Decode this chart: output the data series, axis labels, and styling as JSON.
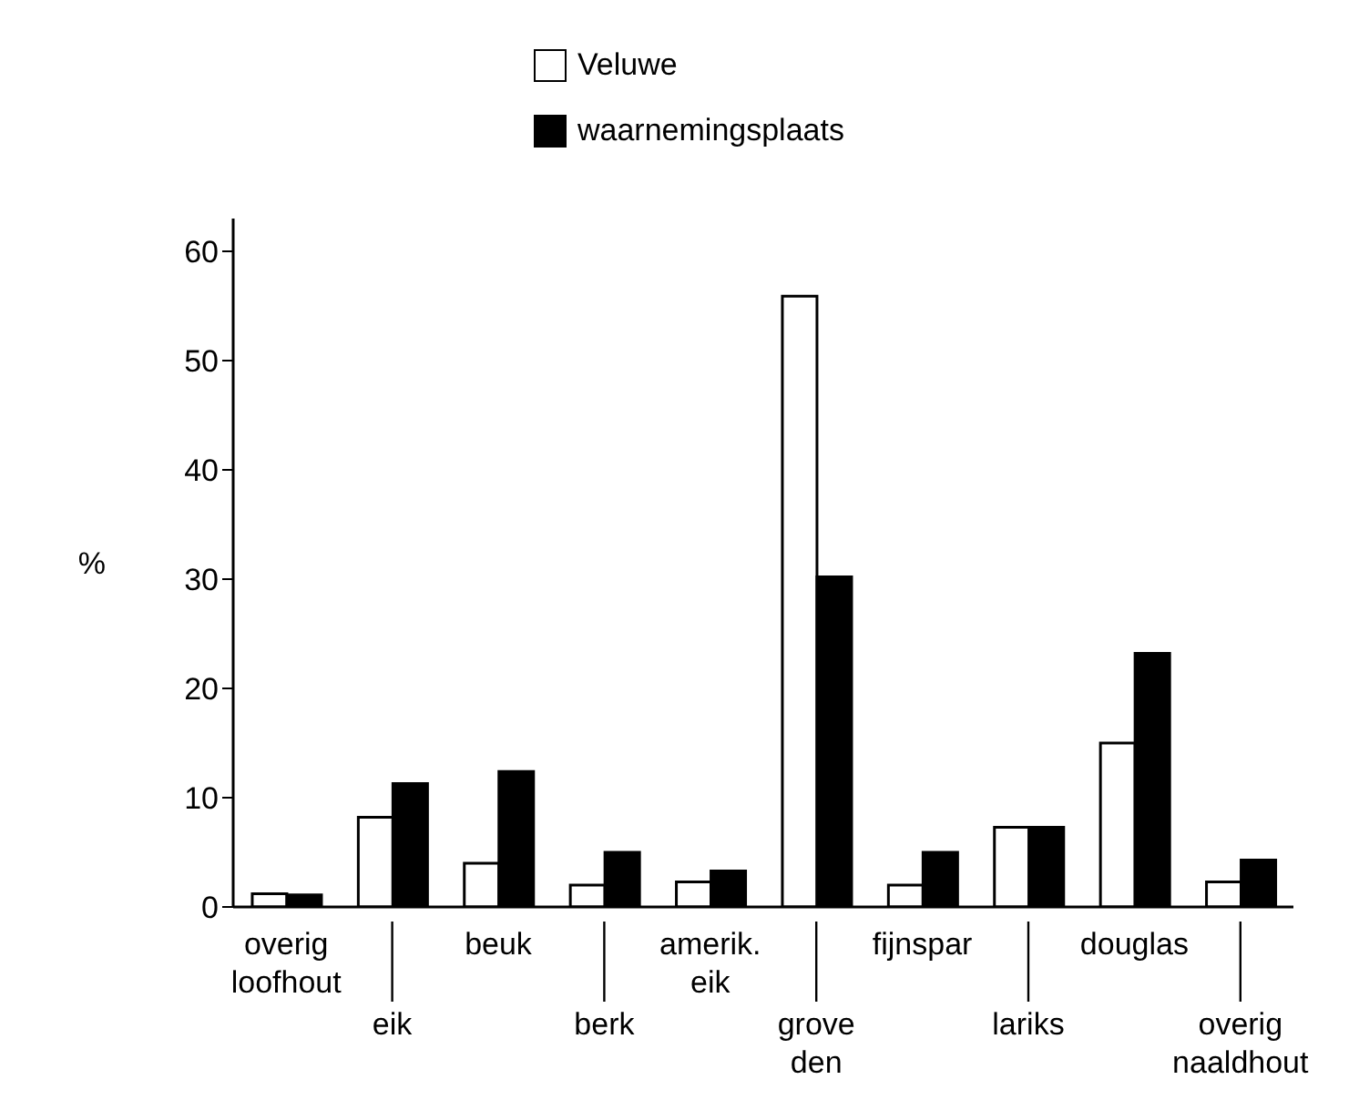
{
  "chart_data": {
    "type": "bar",
    "ylabel": "%",
    "categories": [
      "overig loofhout",
      "eik",
      "beuk",
      "berk",
      "amerik. eik",
      "grove den",
      "fijnspar",
      "lariks",
      "douglas",
      "overig naaldhout"
    ],
    "series": [
      {
        "name": "Veluwe",
        "color": "#ffffff",
        "values": [
          1.2,
          8.2,
          4.0,
          2.0,
          2.3,
          55.9,
          2.0,
          7.3,
          15.0,
          2.3
        ]
      },
      {
        "name": "waarnemingsplaats",
        "color": "#000000",
        "values": [
          1.1,
          11.3,
          12.4,
          5.0,
          3.3,
          30.2,
          5.0,
          7.3,
          23.2,
          4.3
        ]
      }
    ],
    "ylim": [
      0,
      63
    ],
    "yticks": [
      0,
      10,
      20,
      30,
      40,
      50,
      60
    ],
    "grid": false,
    "legend": "top"
  }
}
